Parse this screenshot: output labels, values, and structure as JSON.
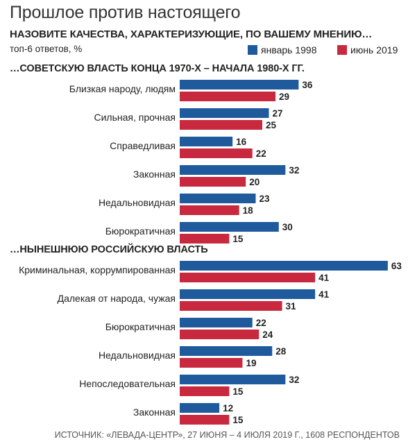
{
  "title": "Прошлое против настоящего",
  "question": "НАЗОВИТЕ КАЧЕСТВА, ХАРАКТЕРИЗУЮЩИЕ, ПО ВАШЕМУ МНЕНИЮ…",
  "subtitle": "топ-6 ответов, %",
  "source": "ИСТОЧНИК: «ЛЕВАДА-ЦЕНТР», 27 ИЮНЯ – 4 ИЮЛЯ 2019 Г., 1608 РЕСПОНДЕНТОВ",
  "colors": {
    "series1": "#1f5a9c",
    "series2": "#c8293f"
  },
  "legend": [
    {
      "name": "январь 1998"
    },
    {
      "name": "июнь 2019"
    }
  ],
  "chart_data": [
    {
      "type": "bar",
      "orientation": "horizontal",
      "title": "…СОВЕТСКУЮ ВЛАСТЬ КОНЦА 1970-Х – НАЧАЛА 1980-Х ГГ.",
      "categories": [
        "Близкая народу, людям",
        "Сильная, прочная",
        "Справедливая",
        "Законная",
        "Недальновидная",
        "Бюрократичная"
      ],
      "series": [
        {
          "name": "январь 1998",
          "values": [
            36,
            27,
            16,
            32,
            23,
            30
          ]
        },
        {
          "name": "июнь 2019",
          "values": [
            29,
            25,
            22,
            20,
            18,
            15
          ]
        }
      ],
      "xlim": [
        0,
        63
      ]
    },
    {
      "type": "bar",
      "orientation": "horizontal",
      "title": "…НЫНЕШНЮЮ РОССИЙСКУЮ ВЛАСТЬ",
      "categories": [
        "Криминальная, коррумпированная",
        "Далекая от народа, чужая",
        "Бюрократичная",
        "Недальновидная",
        "Непоследовательная",
        "Законная"
      ],
      "series": [
        {
          "name": "январь 1998",
          "values": [
            63,
            41,
            22,
            28,
            32,
            12
          ]
        },
        {
          "name": "июнь 2019",
          "values": [
            41,
            31,
            24,
            19,
            15,
            15
          ]
        }
      ],
      "xlim": [
        0,
        63
      ]
    }
  ]
}
